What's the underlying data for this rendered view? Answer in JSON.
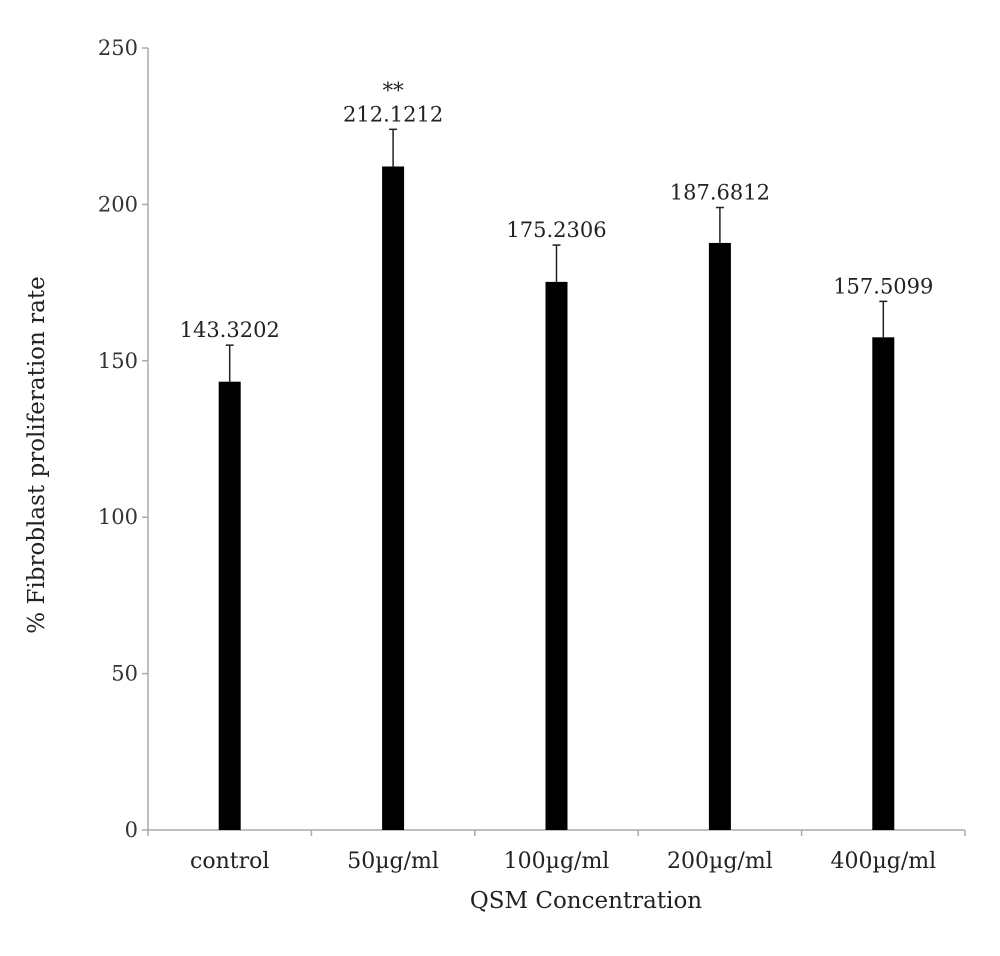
{
  "chart_data": {
    "type": "bar",
    "title": "",
    "xlabel": "QSM Concentration",
    "ylabel": "% Fibroblast proliferation rate",
    "categories": [
      "control",
      "50µg/ml",
      "100µg/ml",
      "200µg/ml",
      "400µg/ml"
    ],
    "values": [
      143.3202,
      212.1212,
      175.2306,
      187.6812,
      157.5099
    ],
    "value_labels": [
      "143.3202",
      "212.1212",
      "175.2306",
      "187.6812",
      "157.5099"
    ],
    "error_upper": [
      155,
      224,
      187,
      199,
      169
    ],
    "significance": [
      "",
      "**",
      "",
      "",
      ""
    ],
    "ylim": [
      0,
      250
    ],
    "yticks": [
      0,
      50,
      100,
      150,
      200,
      250
    ],
    "grid": false,
    "legend": "none",
    "bar_color": "#000000"
  }
}
